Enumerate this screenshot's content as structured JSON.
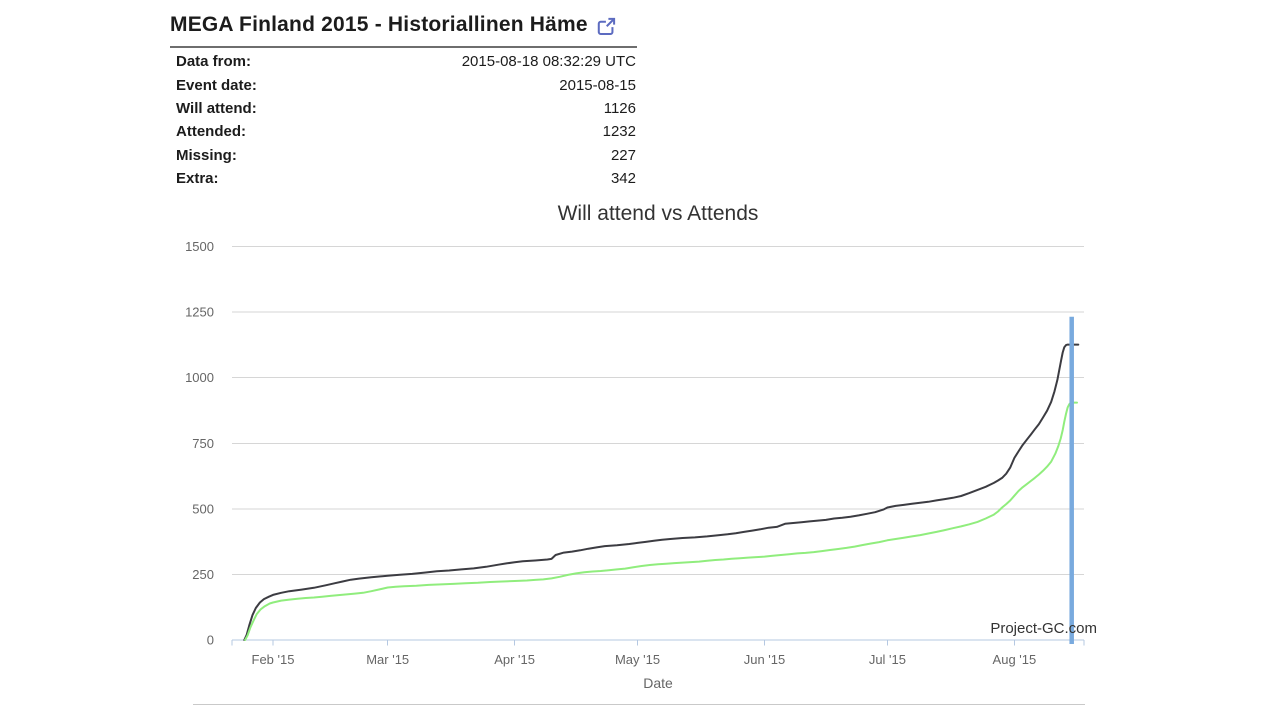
{
  "page": {
    "title": "MEGA Finland 2015 - Historiallinen Häme"
  },
  "info_table": {
    "rows": [
      {
        "label": "Data from:",
        "value": "2015-08-18 08:32:29 UTC"
      },
      {
        "label": "Event date:",
        "value": "2015-08-15"
      },
      {
        "label": "Will attend:",
        "value": "1126"
      },
      {
        "label": "Attended:",
        "value": "1232"
      },
      {
        "label": "Missing:",
        "value": "227"
      },
      {
        "label": "Extra:",
        "value": "342"
      }
    ]
  },
  "colors": {
    "grid": "#d6d6d6",
    "axis": "#b5c8e2",
    "axis_text": "#666666",
    "title_text": "#333333",
    "watermark_text": "#333333",
    "event_line": "#79aade",
    "will_attend": "#3c3c42",
    "attends": "#90ed7d",
    "link_icon": "#5c6bc0"
  },
  "chart_data": {
    "type": "line",
    "title": "Will attend vs Attends",
    "xlabel": "Date",
    "ylabel": "",
    "grid": true,
    "legend": "none",
    "watermark": "Project-GC.com",
    "ylim": [
      0,
      1500
    ],
    "y_ticks": [
      0,
      250,
      500,
      750,
      1000,
      1250,
      1500
    ],
    "x_domain_days": [
      0,
      208
    ],
    "x_domain_dates": [
      "2015-01-22",
      "2015-08-18"
    ],
    "x_tick_days": [
      10,
      38,
      69,
      99,
      130,
      160,
      191
    ],
    "x_tick_labels": [
      "Feb '15",
      "Mar '15",
      "Apr '15",
      "May '15",
      "Jun '15",
      "Jul '15",
      "Aug '15"
    ],
    "event_line": {
      "date": "2015-08-15",
      "day": 205,
      "top_value": 1232,
      "color": "#79aade"
    },
    "series": [
      {
        "name": "Will attend",
        "color": "#3c3c42",
        "final_value": 1126,
        "points": [
          [
            3,
            0
          ],
          [
            3.6,
            20
          ],
          [
            4.2,
            55
          ],
          [
            5,
            95
          ],
          [
            5.8,
            122
          ],
          [
            6.8,
            143
          ],
          [
            7.8,
            156
          ],
          [
            9,
            165
          ],
          [
            10,
            172
          ],
          [
            12,
            180
          ],
          [
            14,
            186
          ],
          [
            17,
            192
          ],
          [
            20,
            199
          ],
          [
            23,
            209
          ],
          [
            25,
            216
          ],
          [
            27,
            223
          ],
          [
            29,
            230
          ],
          [
            31,
            234
          ],
          [
            34,
            239
          ],
          [
            38,
            245
          ],
          [
            41,
            249
          ],
          [
            44,
            252
          ],
          [
            47,
            257
          ],
          [
            50,
            262
          ],
          [
            53,
            265
          ],
          [
            56,
            269
          ],
          [
            59,
            273
          ],
          [
            62,
            279
          ],
          [
            65,
            287
          ],
          [
            67,
            292
          ],
          [
            69,
            296
          ],
          [
            71,
            300
          ],
          [
            74,
            303
          ],
          [
            77,
            307
          ],
          [
            78,
            309
          ],
          [
            79,
            324
          ],
          [
            81,
            333
          ],
          [
            83,
            337
          ],
          [
            85,
            342
          ],
          [
            87,
            348
          ],
          [
            89,
            353
          ],
          [
            91,
            358
          ],
          [
            94,
            361
          ],
          [
            97,
            366
          ],
          [
            99,
            370
          ],
          [
            101,
            374
          ],
          [
            103,
            378
          ],
          [
            105,
            382
          ],
          [
            107,
            385
          ],
          [
            110,
            389
          ],
          [
            113,
            391
          ],
          [
            116,
            395
          ],
          [
            119,
            400
          ],
          [
            121,
            403
          ],
          [
            123,
            407
          ],
          [
            125,
            412
          ],
          [
            127,
            417
          ],
          [
            129,
            422
          ],
          [
            131,
            428
          ],
          [
            133,
            431
          ],
          [
            135,
            443
          ],
          [
            137,
            446
          ],
          [
            139,
            449
          ],
          [
            141,
            452
          ],
          [
            143,
            455
          ],
          [
            145,
            458
          ],
          [
            147,
            463
          ],
          [
            149,
            466
          ],
          [
            151,
            470
          ],
          [
            153,
            475
          ],
          [
            155,
            481
          ],
          [
            157,
            487
          ],
          [
            159,
            497
          ],
          [
            160,
            505
          ],
          [
            162,
            511
          ],
          [
            164,
            515
          ],
          [
            166,
            519
          ],
          [
            168,
            523
          ],
          [
            170,
            527
          ],
          [
            172,
            532
          ],
          [
            174,
            537
          ],
          [
            176,
            542
          ],
          [
            178,
            549
          ],
          [
            180,
            560
          ],
          [
            182,
            572
          ],
          [
            184,
            584
          ],
          [
            186,
            599
          ],
          [
            187,
            608
          ],
          [
            188,
            618
          ],
          [
            189,
            634
          ],
          [
            190,
            658
          ],
          [
            191,
            694
          ],
          [
            192,
            719
          ],
          [
            193,
            743
          ],
          [
            194,
            763
          ],
          [
            195,
            783
          ],
          [
            196,
            803
          ],
          [
            197,
            823
          ],
          [
            198,
            848
          ],
          [
            199,
            874
          ],
          [
            200,
            908
          ],
          [
            200.8,
            948
          ],
          [
            201.5,
            992
          ],
          [
            202,
            1032
          ],
          [
            202.4,
            1066
          ],
          [
            202.8,
            1096
          ],
          [
            203.2,
            1116
          ],
          [
            203.6,
            1124
          ],
          [
            204,
            1126
          ],
          [
            206.6,
            1126
          ]
        ]
      },
      {
        "name": "Attends",
        "color": "#90ed7d",
        "final_value": 905,
        "points": [
          [
            3.2,
            0
          ],
          [
            3.8,
            18
          ],
          [
            4.5,
            48
          ],
          [
            5.2,
            72
          ],
          [
            6,
            98
          ],
          [
            7,
            117
          ],
          [
            8,
            129
          ],
          [
            9.2,
            139
          ],
          [
            10,
            143
          ],
          [
            12,
            150
          ],
          [
            14,
            154
          ],
          [
            16,
            157
          ],
          [
            18,
            160
          ],
          [
            20,
            162
          ],
          [
            22,
            165
          ],
          [
            24,
            168
          ],
          [
            26,
            171
          ],
          [
            28,
            174
          ],
          [
            30,
            177
          ],
          [
            32,
            180
          ],
          [
            34,
            186
          ],
          [
            36,
            193
          ],
          [
            38,
            200
          ],
          [
            40,
            203
          ],
          [
            42,
            205
          ],
          [
            45,
            207
          ],
          [
            48,
            210
          ],
          [
            51,
            212
          ],
          [
            54,
            214
          ],
          [
            57,
            216
          ],
          [
            60,
            218
          ],
          [
            63,
            221
          ],
          [
            66,
            223
          ],
          [
            69,
            225
          ],
          [
            72,
            227
          ],
          [
            74,
            229
          ],
          [
            76,
            231
          ],
          [
            78,
            235
          ],
          [
            80,
            241
          ],
          [
            82,
            248
          ],
          [
            84,
            254
          ],
          [
            86,
            258
          ],
          [
            88,
            261
          ],
          [
            90,
            263
          ],
          [
            92,
            266
          ],
          [
            94,
            269
          ],
          [
            96,
            272
          ],
          [
            98,
            277
          ],
          [
            100,
            282
          ],
          [
            102,
            286
          ],
          [
            104,
            289
          ],
          [
            106,
            291
          ],
          [
            108,
            293
          ],
          [
            110,
            295
          ],
          [
            112,
            297
          ],
          [
            114,
            299
          ],
          [
            116,
            302
          ],
          [
            118,
            305
          ],
          [
            120,
            307
          ],
          [
            122,
            310
          ],
          [
            124,
            312
          ],
          [
            126,
            314
          ],
          [
            128,
            316
          ],
          [
            130,
            318
          ],
          [
            132,
            321
          ],
          [
            134,
            324
          ],
          [
            136,
            327
          ],
          [
            138,
            330
          ],
          [
            140,
            332
          ],
          [
            142,
            335
          ],
          [
            144,
            339
          ],
          [
            146,
            343
          ],
          [
            148,
            347
          ],
          [
            150,
            351
          ],
          [
            152,
            356
          ],
          [
            154,
            362
          ],
          [
            156,
            368
          ],
          [
            158,
            373
          ],
          [
            160,
            380
          ],
          [
            162,
            385
          ],
          [
            164,
            390
          ],
          [
            166,
            395
          ],
          [
            168,
            400
          ],
          [
            170,
            406
          ],
          [
            172,
            412
          ],
          [
            174,
            419
          ],
          [
            176,
            426
          ],
          [
            178,
            433
          ],
          [
            180,
            441
          ],
          [
            182,
            450
          ],
          [
            184,
            463
          ],
          [
            186,
            478
          ],
          [
            187,
            490
          ],
          [
            188,
            505
          ],
          [
            189,
            518
          ],
          [
            190,
            532
          ],
          [
            191,
            550
          ],
          [
            192,
            568
          ],
          [
            193,
            582
          ],
          [
            194,
            594
          ],
          [
            195,
            606
          ],
          [
            196,
            618
          ],
          [
            197,
            631
          ],
          [
            198,
            645
          ],
          [
            199,
            661
          ],
          [
            200,
            680
          ],
          [
            201,
            710
          ],
          [
            201.7,
            738
          ],
          [
            202.3,
            768
          ],
          [
            202.8,
            800
          ],
          [
            203.2,
            832
          ],
          [
            203.6,
            862
          ],
          [
            204,
            886
          ],
          [
            204.4,
            899
          ],
          [
            204.8,
            905
          ],
          [
            206.3,
            905
          ]
        ]
      }
    ]
  }
}
